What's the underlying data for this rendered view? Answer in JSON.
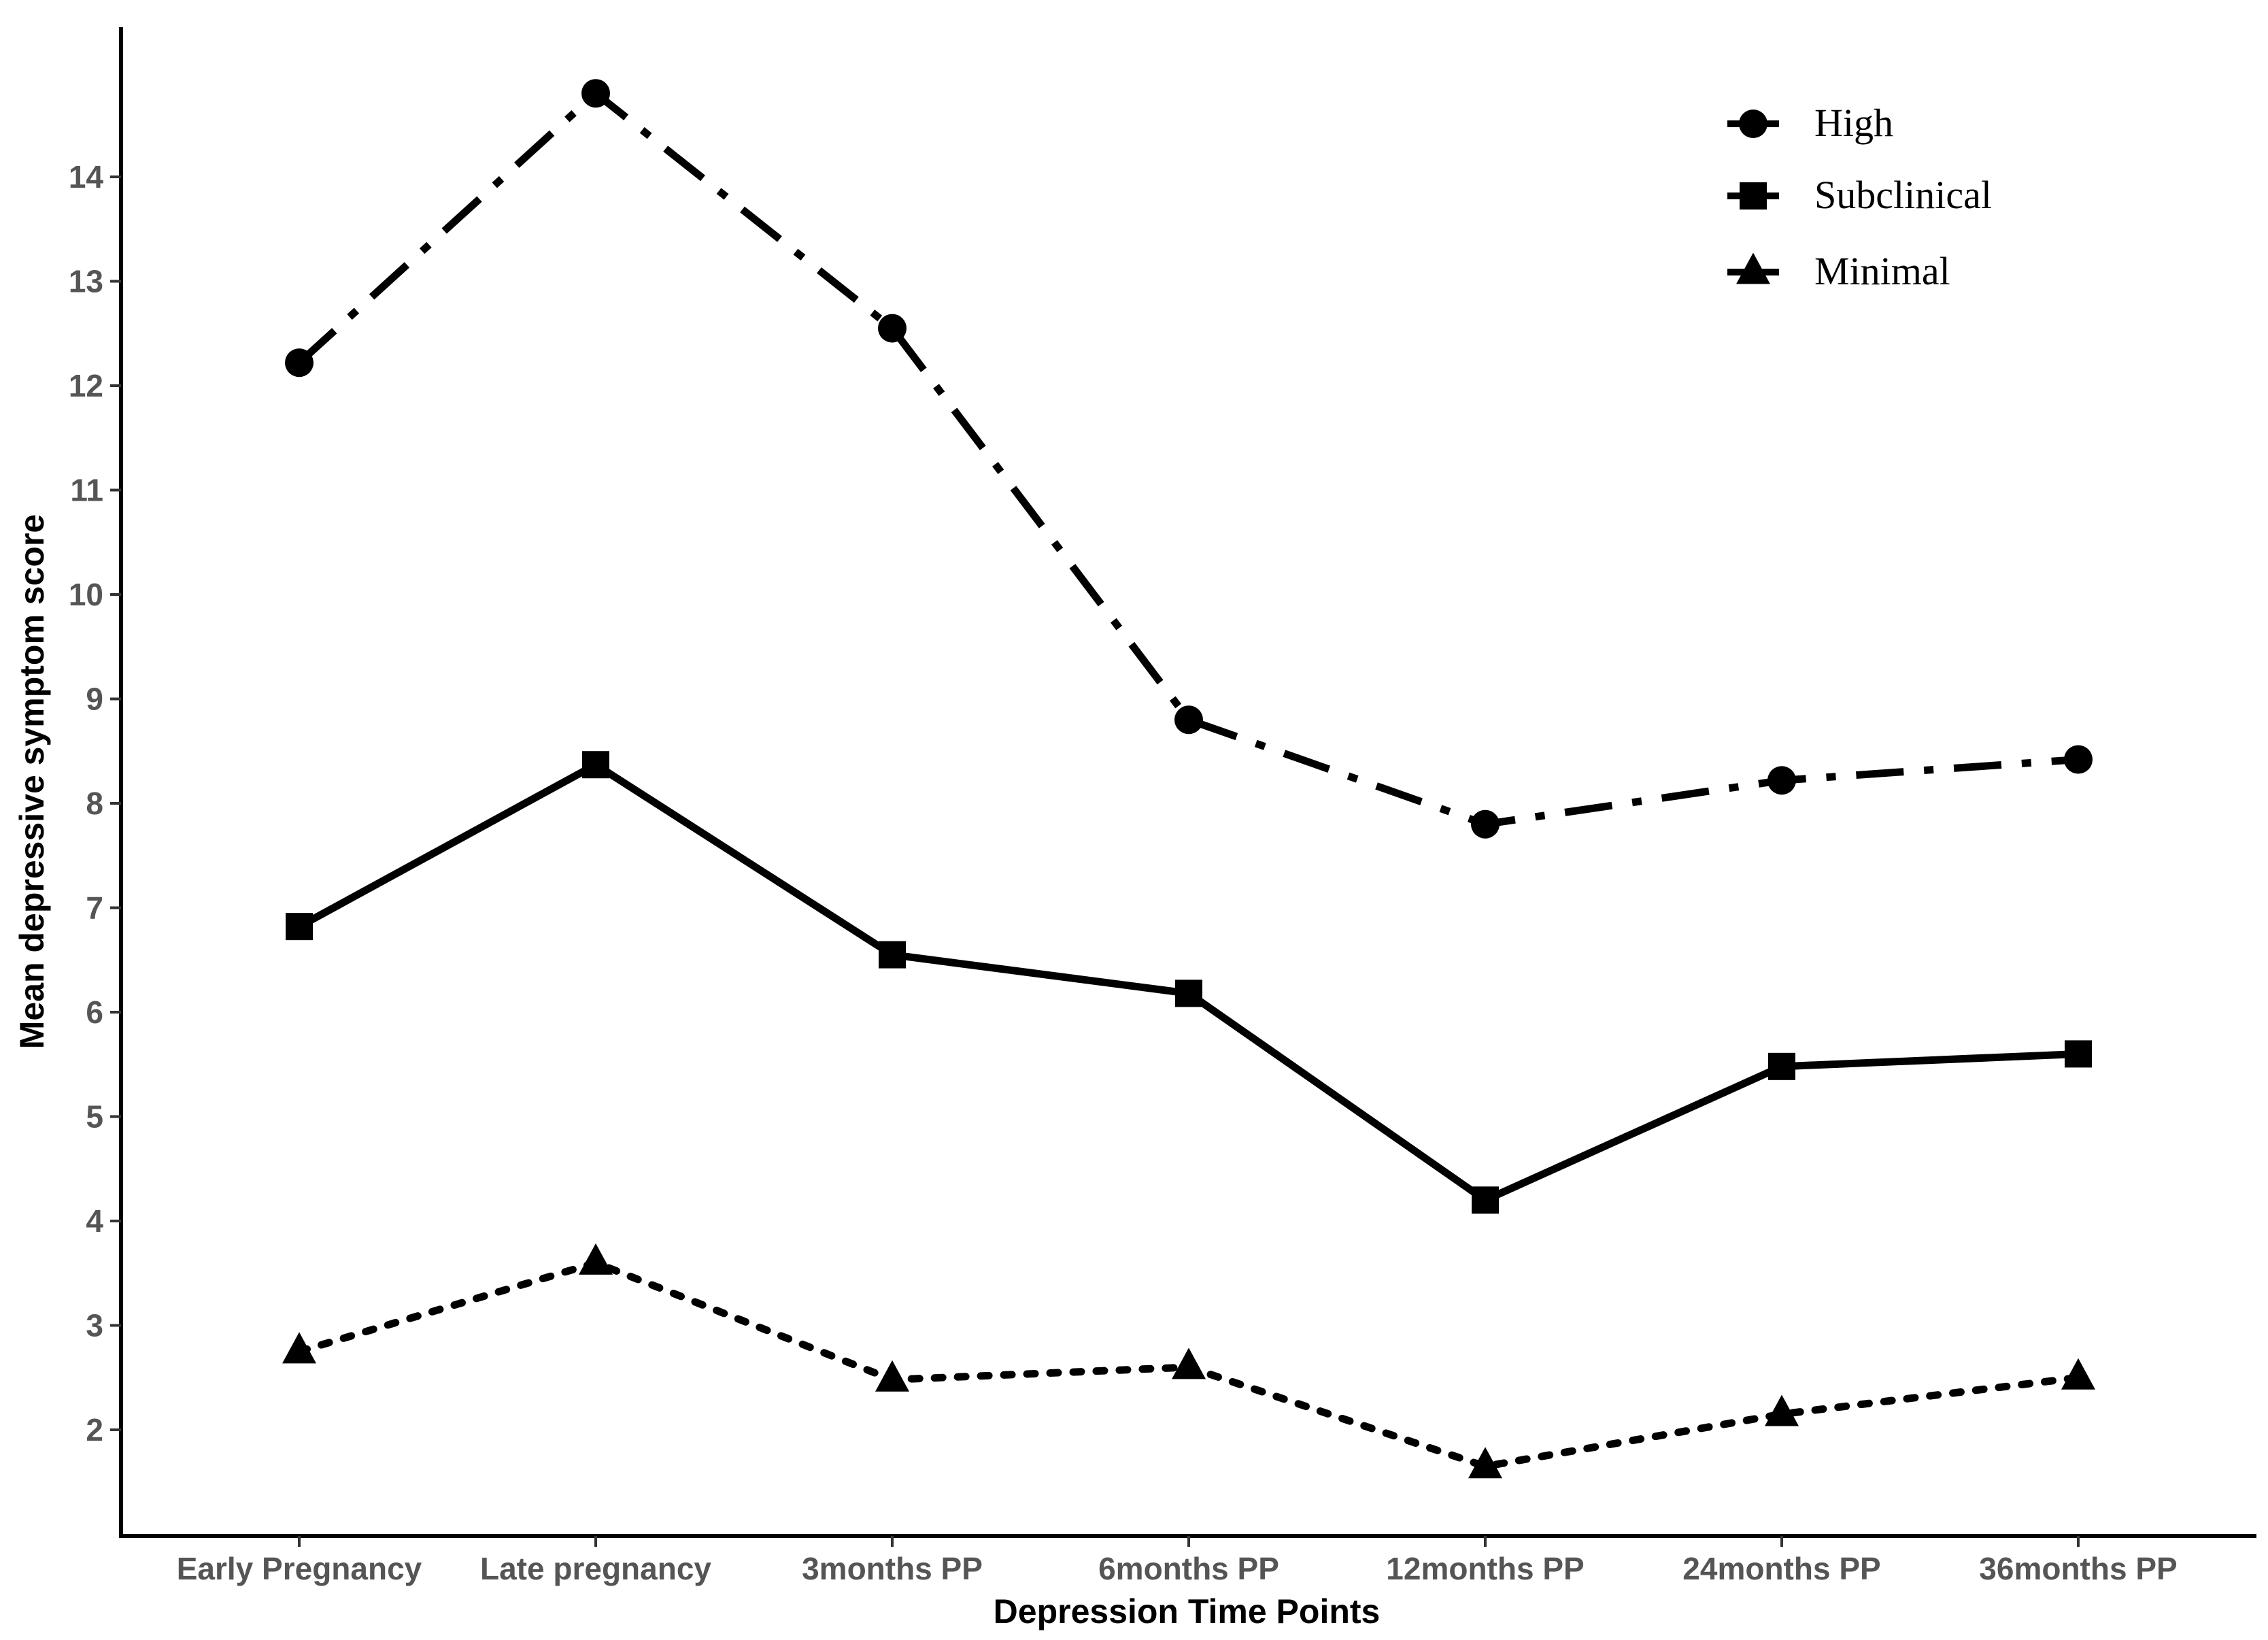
{
  "chart_data": {
    "type": "line",
    "title": "",
    "xlabel": "Depression Time Points",
    "ylabel": "Mean depressive symptom score",
    "categories": [
      "Early Pregnancy",
      "Late pregnancy",
      "3months PP",
      "6months PP",
      "12months PP",
      "24months PP",
      "36months PP"
    ],
    "y_ticks": [
      2,
      3,
      4,
      5,
      6,
      7,
      8,
      9,
      10,
      11,
      12,
      13,
      14
    ],
    "ylim": [
      1.2,
      15.3
    ],
    "grid": false,
    "legend_position": "top-right",
    "series": [
      {
        "name": "High",
        "marker": "circle",
        "line_style": "dashdot",
        "values": [
          12.22,
          14.8,
          12.55,
          8.8,
          7.8,
          8.22,
          8.42
        ]
      },
      {
        "name": "Subclinical",
        "marker": "square",
        "line_style": "solid",
        "values": [
          6.82,
          8.37,
          6.55,
          6.18,
          4.2,
          5.48,
          5.6
        ]
      },
      {
        "name": "Minimal",
        "marker": "triangle",
        "line_style": "dotted",
        "values": [
          2.75,
          3.6,
          2.48,
          2.6,
          1.65,
          2.15,
          2.5
        ]
      }
    ]
  }
}
